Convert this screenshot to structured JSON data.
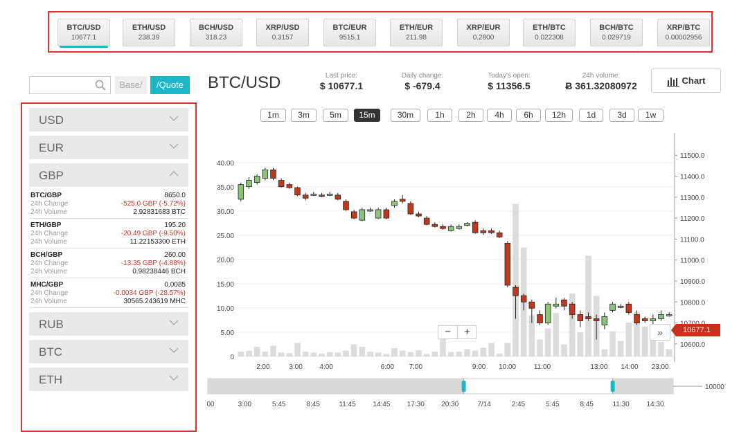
{
  "ticker": [
    {
      "pair": "BTC/USD",
      "value": "10677.1",
      "active": true
    },
    {
      "pair": "ETH/USD",
      "value": "238.39"
    },
    {
      "pair": "BCH/USD",
      "value": "318.23"
    },
    {
      "pair": "XRP/USD",
      "value": "0.3157"
    },
    {
      "pair": "BTC/EUR",
      "value": "9515.1"
    },
    {
      "pair": "ETH/EUR",
      "value": "211.98"
    },
    {
      "pair": "XRP/EUR",
      "value": "0.2800"
    },
    {
      "pair": "ETH/BTC",
      "value": "0.022308"
    },
    {
      "pair": "BCH/BTC",
      "value": "0.029719"
    },
    {
      "pair": "XRP/BTC",
      "value": "0.00002956"
    }
  ],
  "filter": {
    "base_label": "Base/",
    "quote_label": "/Quote"
  },
  "sidebar": {
    "sections_top": [
      "USD",
      "EUR"
    ],
    "open_section": "GBP",
    "pairs": [
      {
        "name": "BTC/GBP",
        "price": "8650.0",
        "change": "-525.0 GBP (-5.72%)",
        "volume": "2.92831683 BTC"
      },
      {
        "name": "ETH/GBP",
        "price": "195.20",
        "change": "-20.49 GBP (-9.50%)",
        "volume": "11.22153300 ETH"
      },
      {
        "name": "BCH/GBP",
        "price": "260.00",
        "change": "-13.35 GBP (-4.88%)",
        "volume": "0.98238446 BCH"
      },
      {
        "name": "MHC/GBP",
        "price": "0.0085",
        "change": "-0.0034 GBP (-28.57%)",
        "volume": "30565.243619 MHC"
      }
    ],
    "change_label": "24h Change",
    "volume_label": "24h Volume",
    "sections_bottom": [
      "RUB",
      "BTC",
      "ETH"
    ]
  },
  "header": {
    "title": "BTC/USD",
    "last_price_label": "Last price:",
    "last_price": "$ 10677.1",
    "daily_change_label": "Daily change:",
    "daily_change": "$ -679.4",
    "open_label": "Today's open:",
    "open": "$ 11356.5",
    "volume_label": "24h volume:",
    "volume": "Ƀ 361.32080972",
    "chart_button": "Chart"
  },
  "timeframes": [
    "1m",
    "3m",
    "5m",
    "15m",
    "30m",
    "1h",
    "2h",
    "4h",
    "6h",
    "12h",
    "1d",
    "3d",
    "1w"
  ],
  "active_timeframe": "15m",
  "chart_data": {
    "type": "candlestick",
    "price_axis": {
      "ticks": [
        10600,
        10700,
        10800,
        10900,
        11000,
        11100,
        11200,
        11300,
        11400,
        11500
      ],
      "range": [
        10540,
        11580
      ]
    },
    "volume_axis": {
      "ticks": [
        0,
        5,
        10,
        15,
        20,
        25,
        30,
        35,
        40
      ],
      "labels": [
        "0",
        "5.00",
        "10.00",
        "15.00",
        "20.00",
        "25.00",
        "30.00",
        "35.00",
        "40.00"
      ],
      "range": [
        0,
        45
      ]
    },
    "x_labels": [
      "2:00",
      "3:00",
      "4:00",
      "6:00",
      "7:00",
      "9:00",
      "10:00",
      "11:00",
      "13:00",
      "14:00",
      "23:00"
    ],
    "last_price": "10677.1",
    "candles": [
      [
        11290,
        11360,
        11370,
        11280
      ],
      [
        11350,
        11380,
        11395,
        11340
      ],
      [
        11370,
        11400,
        11410,
        11360
      ],
      [
        11390,
        11430,
        11440,
        11380
      ],
      [
        11430,
        11390,
        11440,
        11380
      ],
      [
        11380,
        11350,
        11390,
        11345
      ],
      [
        11360,
        11345,
        11370,
        11340
      ],
      [
        11345,
        11310,
        11350,
        11305
      ],
      [
        11310,
        11295,
        11320,
        11285
      ],
      [
        11310,
        11315,
        11325,
        11305
      ],
      [
        11310,
        11305,
        11320,
        11300
      ],
      [
        11310,
        11315,
        11325,
        11305
      ],
      [
        11310,
        11290,
        11320,
        11285
      ],
      [
        11280,
        11240,
        11290,
        11235
      ],
      [
        11230,
        11200,
        11240,
        11195
      ],
      [
        11190,
        11240,
        11250,
        11185
      ],
      [
        11240,
        11240,
        11250,
        11230
      ],
      [
        11200,
        11240,
        11250,
        11195
      ],
      [
        11240,
        11200,
        11250,
        11195
      ],
      [
        11260,
        11280,
        11290,
        11250
      ],
      [
        11290,
        11280,
        11310,
        11270
      ],
      [
        11270,
        11220,
        11280,
        11215
      ],
      [
        11220,
        11210,
        11230,
        11205
      ],
      [
        11200,
        11170,
        11210,
        11165
      ],
      [
        11170,
        11160,
        11180,
        11155
      ],
      [
        11160,
        11150,
        11170,
        11145
      ],
      [
        11140,
        11160,
        11170,
        11135
      ],
      [
        11150,
        11160,
        11170,
        11145
      ],
      [
        11165,
        11175,
        11180,
        11160
      ],
      [
        11180,
        11130,
        11190,
        11125
      ],
      [
        11140,
        11130,
        11150,
        11120
      ],
      [
        11140,
        11130,
        11150,
        11125
      ],
      [
        11130,
        11110,
        11140,
        11105
      ],
      [
        11080,
        10880,
        11090,
        10870
      ],
      [
        10870,
        10830,
        10880,
        10720
      ],
      [
        10830,
        10800,
        10840,
        10760
      ],
      [
        10800,
        10770,
        10810,
        10700
      ],
      [
        10740,
        10700,
        10760,
        10690
      ],
      [
        10700,
        10790,
        10800,
        10690
      ],
      [
        10780,
        10790,
        10820,
        10770
      ],
      [
        10810,
        10780,
        10820,
        10760
      ],
      [
        10790,
        10740,
        10800,
        10720
      ],
      [
        10740,
        10710,
        10760,
        10680
      ],
      [
        10730,
        10720,
        10750,
        10710
      ],
      [
        10720,
        10710,
        10740,
        10620
      ],
      [
        10690,
        10730,
        10750,
        10670
      ],
      [
        10760,
        10790,
        10800,
        10750
      ],
      [
        10780,
        10780,
        10790,
        10770
      ],
      [
        10790,
        10750,
        10800,
        10740
      ],
      [
        10740,
        10700,
        10760,
        10690
      ],
      [
        10720,
        10710,
        10730,
        10700
      ],
      [
        10710,
        10720,
        10740,
        10640
      ],
      [
        10720,
        10740,
        10760,
        10710
      ],
      [
        10740,
        10740,
        10750,
        10730
      ]
    ],
    "volumes": [
      1.0,
      1.2,
      2.0,
      1.0,
      2.2,
      0.8,
      0.7,
      2.8,
      1.0,
      0.8,
      0.6,
      0.9,
      0.8,
      1.2,
      2.5,
      2.0,
      1.0,
      0.8,
      0.5,
      1.7,
      1.2,
      0.9,
      1.3,
      0.5,
      1.0,
      3.6,
      0.9,
      1.0,
      1.5,
      1.2,
      1.8,
      2.8,
      0.6,
      2.8,
      31.5,
      22.5,
      8.5,
      3.5,
      5.8,
      9.0,
      2.5,
      13.0,
      5.0,
      20.8,
      12.5,
      1.5,
      5.2,
      3.2,
      7.0,
      9.2,
      6.2,
      5.2,
      3.0,
      1.5
    ],
    "navigator": {
      "labels": [
        "00",
        "3:00",
        "5:45",
        "8:45",
        "11:45",
        "14:45",
        "17:30",
        "20:30",
        "7/14",
        "2:45",
        "5:45",
        "8:45",
        "11:30",
        "14:30"
      ],
      "right_label": "10000",
      "window": [
        0.55,
        0.87
      ]
    }
  }
}
